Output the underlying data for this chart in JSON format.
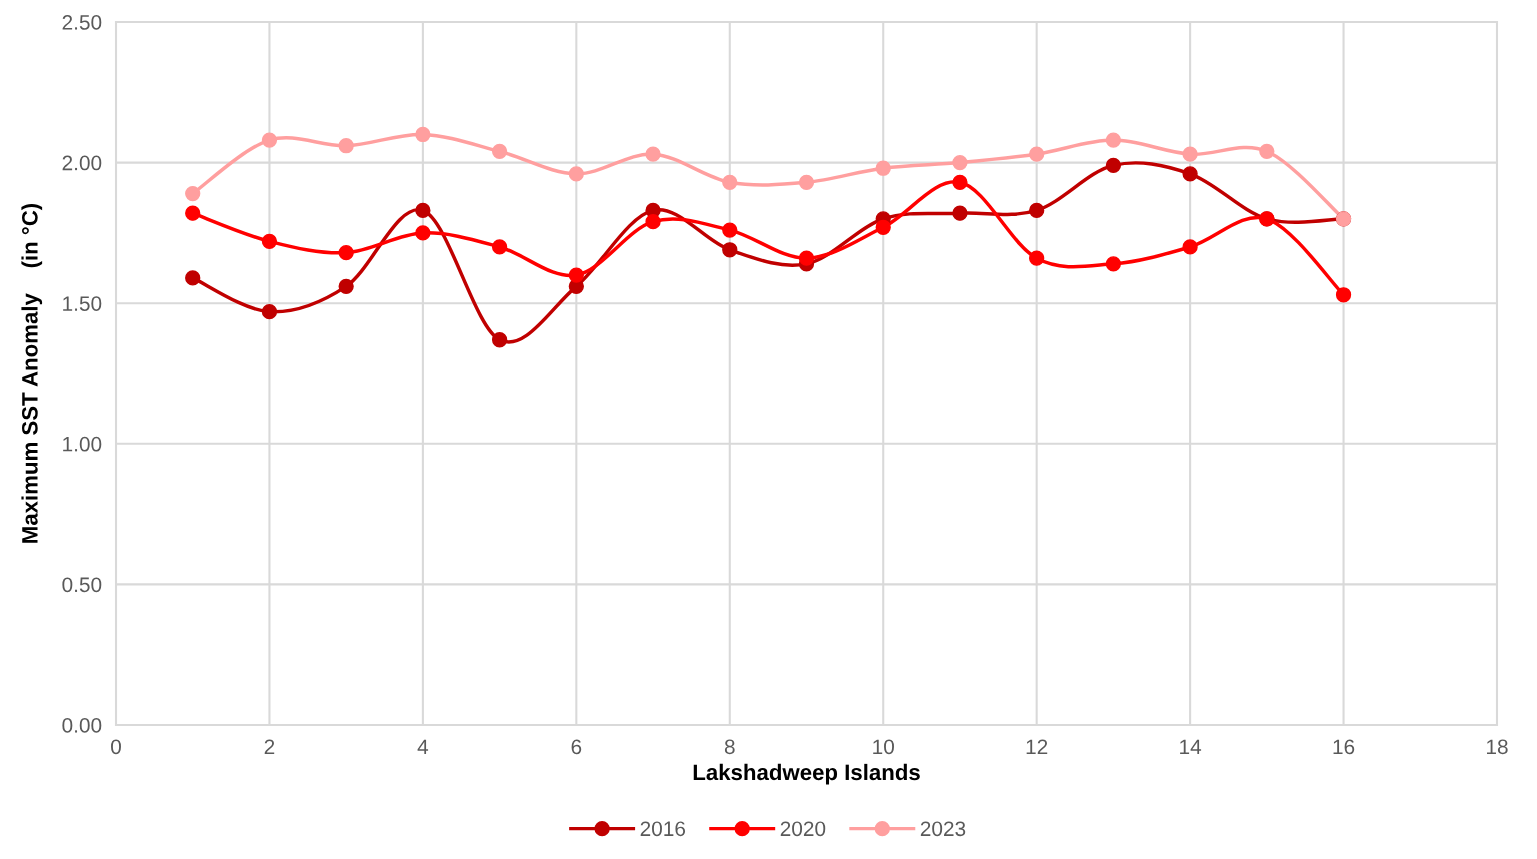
{
  "chart_data": {
    "type": "line",
    "xlabel": "Lakshadweep Islands",
    "ylabel": "Maximum SST Anomaly    (in °C)",
    "x": [
      1,
      2,
      3,
      4,
      5,
      6,
      7,
      8,
      9,
      10,
      11,
      12,
      13,
      14,
      15,
      16
    ],
    "series": [
      {
        "name": "2016",
        "color": "#c00000",
        "values": [
          1.59,
          1.47,
          1.56,
          1.83,
          1.37,
          1.56,
          1.83,
          1.69,
          1.64,
          1.8,
          1.82,
          1.83,
          1.99,
          1.96,
          1.8,
          1.8
        ]
      },
      {
        "name": "2020",
        "color": "#ff0000",
        "values": [
          1.82,
          1.72,
          1.68,
          1.75,
          1.7,
          1.6,
          1.79,
          1.76,
          1.66,
          1.77,
          1.93,
          1.66,
          1.64,
          1.7,
          1.8,
          1.53
        ]
      },
      {
        "name": "2023",
        "color": "#ff9f9f",
        "values": [
          1.89,
          2.08,
          2.06,
          2.1,
          2.04,
          1.96,
          2.03,
          1.93,
          1.93,
          1.98,
          2.0,
          2.03,
          2.08,
          2.03,
          2.04,
          1.8
        ]
      }
    ],
    "xlim": [
      0,
      18
    ],
    "xticks": [
      0,
      2,
      4,
      6,
      8,
      10,
      12,
      14,
      16,
      18
    ],
    "ylim": [
      0,
      2.5
    ],
    "yticks": [
      {
        "value": 0,
        "label": "0.00"
      },
      {
        "value": 0.5,
        "label": "0.50"
      },
      {
        "value": 1,
        "label": "1.00"
      },
      {
        "value": 1.5,
        "label": "1.50"
      },
      {
        "value": 2,
        "label": "2.00"
      },
      {
        "value": 2.5,
        "label": "2.50"
      }
    ],
    "grid": true,
    "legend": "bottom",
    "marker": "circle",
    "line_style": "solid"
  }
}
